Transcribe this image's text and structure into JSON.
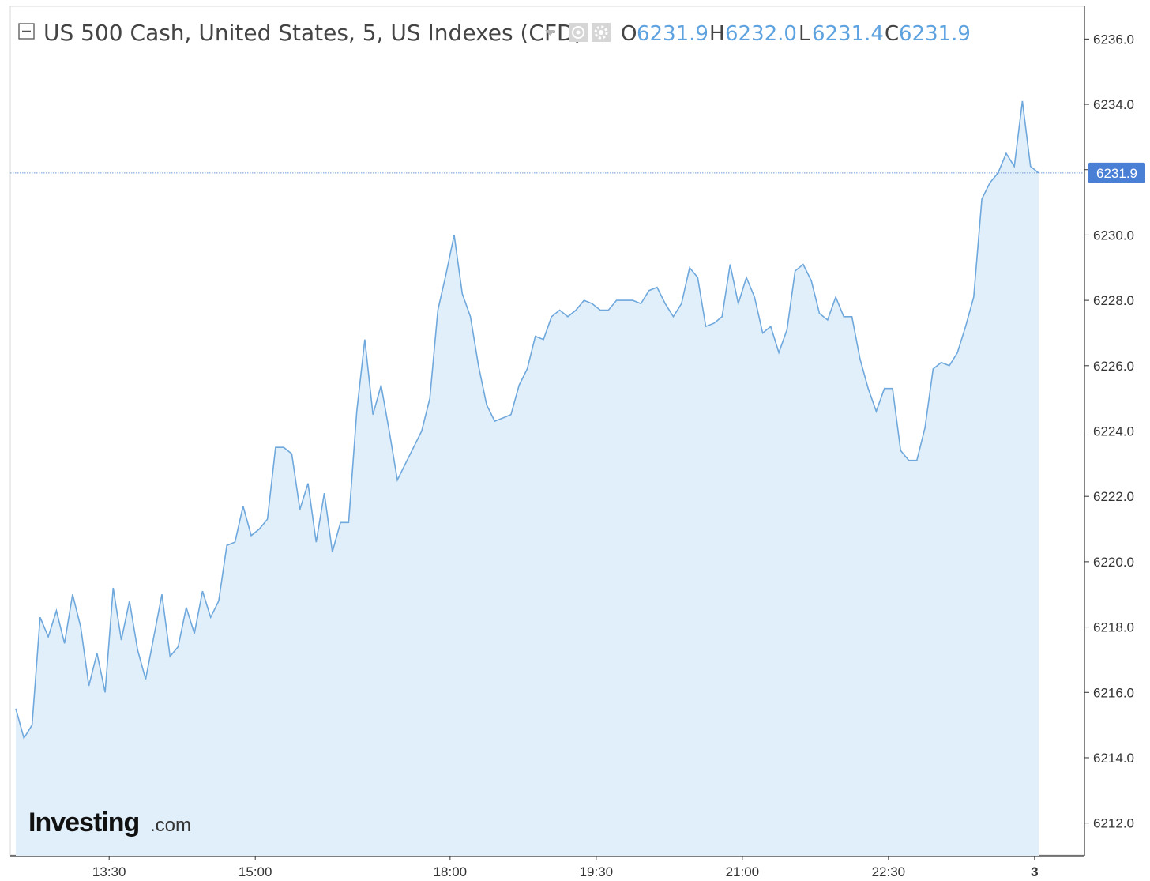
{
  "header": {
    "title": "US 500 Cash, United States, 5, US Indexes (CFD)",
    "ohlc": [
      {
        "label": "O",
        "value": "6231.9"
      },
      {
        "label": "H",
        "value": "6232.0"
      },
      {
        "label": "L",
        "value": "6231.4"
      },
      {
        "label": "C",
        "value": "6231.9"
      }
    ]
  },
  "price_badge": "6231.9",
  "logo": {
    "brand": "Investing",
    "suffix": ".com"
  },
  "colors": {
    "line": "#6fa8dc",
    "fill": "#e1effa",
    "badge": "#4a7fd6",
    "value_text": "#5ea3e0",
    "grid": "#e8e8e8",
    "axis": "#333333"
  },
  "chart_data": {
    "type": "area",
    "title": "US 500 Cash, United States, 5, US Indexes (CFD)",
    "ylim": [
      6211,
      6237
    ],
    "y_ticks": [
      "6212.0",
      "6214.0",
      "6216.0",
      "6218.0",
      "6220.0",
      "6222.0",
      "6224.0",
      "6226.0",
      "6228.0",
      "6230.0",
      "6232.0",
      "6234.0",
      "6236.0"
    ],
    "x_ticks": [
      {
        "label": "13:30",
        "index": 11.5
      },
      {
        "label": "15:00",
        "index": 29.5
      },
      {
        "label": "18:00",
        "index": 53.5
      },
      {
        "label": "19:30",
        "index": 71.5
      },
      {
        "label": "21:00",
        "index": 89.5
      },
      {
        "label": "22:30",
        "index": 107.5
      },
      {
        "label": "3",
        "index": 125.5
      }
    ],
    "last_value": 6231.9,
    "values": [
      6215.5,
      6214.6,
      6215.0,
      6218.3,
      6217.7,
      6218.5,
      6217.5,
      6219.0,
      6218.0,
      6216.2,
      6217.2,
      6216.0,
      6219.2,
      6217.6,
      6218.8,
      6217.3,
      6216.4,
      6217.7,
      6219.0,
      6217.1,
      6217.4,
      6218.6,
      6217.8,
      6219.1,
      6218.3,
      6218.8,
      6220.5,
      6220.6,
      6221.7,
      6220.8,
      6221.0,
      6221.3,
      6223.5,
      6223.5,
      6223.3,
      6221.6,
      6222.4,
      6220.6,
      6222.1,
      6220.3,
      6221.2,
      6221.2,
      6224.6,
      6226.8,
      6224.5,
      6225.4,
      6224.0,
      6222.5,
      6223.0,
      6223.5,
      6224.0,
      6225.0,
      6227.7,
      6228.8,
      6230.0,
      6228.2,
      6227.5,
      6226.0,
      6224.8,
      6224.3,
      6224.4,
      6224.5,
      6225.4,
      6225.9,
      6226.9,
      6226.8,
      6227.5,
      6227.7,
      6227.5,
      6227.7,
      6228.0,
      6227.9,
      6227.7,
      6227.7,
      6228.0,
      6228.0,
      6228.0,
      6227.9,
      6228.3,
      6228.4,
      6227.9,
      6227.5,
      6227.9,
      6229.0,
      6228.7,
      6227.2,
      6227.3,
      6227.5,
      6229.1,
      6227.9,
      6228.7,
      6228.1,
      6227.0,
      6227.2,
      6226.4,
      6227.1,
      6228.9,
      6229.1,
      6228.6,
      6227.6,
      6227.4,
      6228.1,
      6227.5,
      6227.5,
      6226.2,
      6225.3,
      6224.6,
      6225.3,
      6225.3,
      6223.4,
      6223.1,
      6223.1,
      6224.1,
      6225.9,
      6226.1,
      6226.0,
      6226.4,
      6227.2,
      6228.1,
      6231.1,
      6231.6,
      6231.9,
      6232.5,
      6232.1,
      6234.1,
      6232.1,
      6231.9
    ]
  }
}
